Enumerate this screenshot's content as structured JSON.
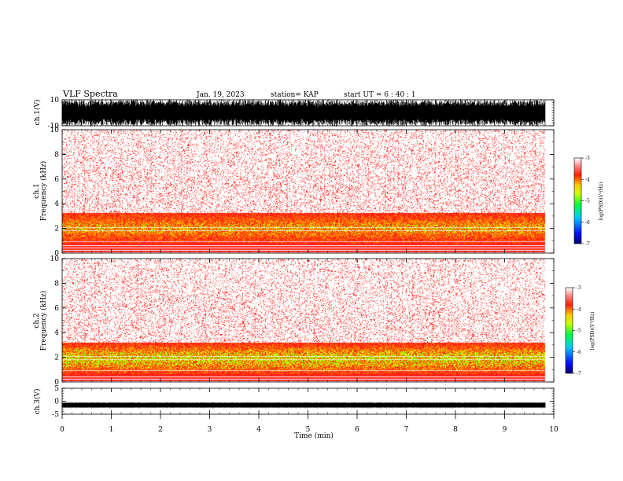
{
  "header": {
    "title": "VLF Spectra",
    "date": "Jan. 19, 2023",
    "station": "station= KAP",
    "start": "start  UT =  6 : 40 : 1"
  },
  "chart_data": [
    {
      "id": "ch1-waveform",
      "type": "line",
      "ylabel": "ch.1(V)",
      "ylim": [
        -10,
        10
      ],
      "yticks": [
        "10",
        "-10"
      ],
      "x_range_min": [
        0,
        9.83
      ],
      "description_values": "saturated noise, amplitude between about -10 and 10 V"
    },
    {
      "id": "ch1-spectrogram",
      "type": "heatmap",
      "ylabel": "ch.1 Frequency (kHz)",
      "ylim": [
        0,
        10
      ],
      "yticks": [
        "0",
        "2",
        "4",
        "6",
        "8",
        "10"
      ],
      "x_range_min": [
        0,
        9.83
      ],
      "band_kHz": [
        0.8,
        3.3
      ],
      "colorbar": {
        "label": "log(PSD)(V²/Hz)",
        "range": [
          -7,
          -3
        ],
        "ticks": [
          "-3",
          "-4",
          "-5",
          "-6",
          "-7"
        ]
      }
    },
    {
      "id": "ch2-spectrogram",
      "type": "heatmap",
      "ylabel": "ch.2 Frequency (kHz)",
      "ylim": [
        0,
        10
      ],
      "yticks": [
        "0",
        "2",
        "4",
        "6",
        "8",
        "10"
      ],
      "x_range_min": [
        0,
        9.83
      ],
      "band_kHz": [
        0.6,
        3.2
      ],
      "colorbar": {
        "label": "log(PSD)(V²/Hz)",
        "range": [
          -7,
          -3
        ],
        "ticks": [
          "-3",
          "-4",
          "-5",
          "-6",
          "-7"
        ]
      }
    },
    {
      "id": "ch3-waveform",
      "type": "line",
      "ylabel": "ch.3(V)",
      "ylim": [
        -5,
        5
      ],
      "yticks": [
        "5",
        "0",
        "-5"
      ],
      "x_range_min": [
        0,
        9.83
      ],
      "level_V": -1.5
    }
  ],
  "xaxis": {
    "label": "Time (min)",
    "range": [
      0,
      10
    ],
    "ticks": [
      "0",
      "1",
      "2",
      "3",
      "4",
      "5",
      "6",
      "7",
      "8",
      "9",
      "10"
    ]
  },
  "colors": {
    "ink": "#000000",
    "background": "#ffffff"
  }
}
